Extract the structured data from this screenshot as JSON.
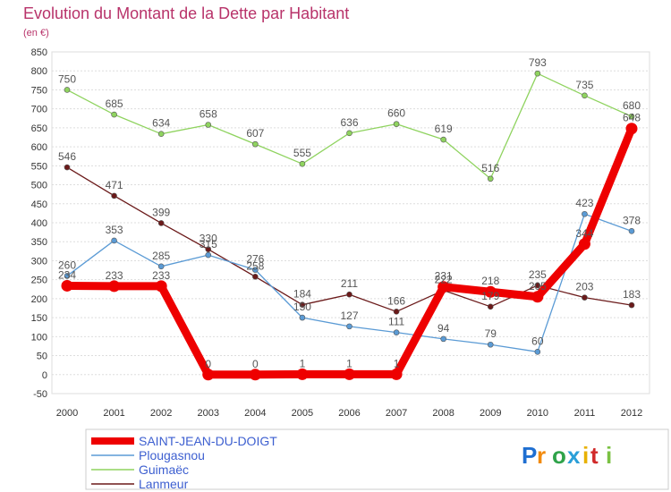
{
  "logo": {
    "text": "Proxiti",
    "letter_colors": [
      "#1f6fd1",
      "#f28a0c",
      "#2fa34a",
      "#2a9fd8",
      "#e8b100",
      "#d12a2a",
      "#7ac143"
    ]
  },
  "chart_data": {
    "type": "line",
    "title": "Evolution du Montant de la Dette par Habitant",
    "subtitle": "(en €)",
    "xlabel": "",
    "ylabel": "",
    "x": [
      "2000",
      "2001",
      "2002",
      "2003",
      "2004",
      "2005",
      "2006",
      "2007",
      "2008",
      "2009",
      "2010",
      "2011",
      "2012"
    ],
    "ylim": [
      -50,
      850
    ],
    "ytick_step": 50,
    "grid": true,
    "legend_position": "bottom-left",
    "series": [
      {
        "name": "SAINT-JEAN-DU-DOIGT",
        "color": "#ee0000",
        "values": [
          234,
          233,
          233,
          0,
          0,
          1,
          1,
          1,
          231,
          218,
          205,
          344,
          648
        ],
        "labels": [
          "234",
          "233",
          "233",
          "0",
          "0",
          "1",
          "1",
          "1",
          "231",
          "218",
          "205",
          "344",
          "648"
        ]
      },
      {
        "name": "Plougasnou",
        "color": "#5b9bd5",
        "values": [
          260,
          353,
          285,
          315,
          276,
          150,
          127,
          111,
          94,
          79,
          60,
          423,
          378
        ],
        "labels": [
          "260",
          "353",
          "285",
          "315",
          "276",
          "150",
          "127",
          "111",
          "94",
          "79",
          "60",
          "423",
          "378"
        ]
      },
      {
        "name": "Guimaëc",
        "color": "#8fd35f",
        "values": [
          750,
          685,
          634,
          658,
          607,
          555,
          636,
          660,
          619,
          516,
          793,
          735,
          680
        ],
        "labels": [
          "750",
          "685",
          "634",
          "658",
          "607",
          "555",
          "636",
          "660",
          "619",
          "516",
          "793",
          "735",
          "680"
        ]
      },
      {
        "name": "Lanmeur",
        "color": "#6b1a1a",
        "values": [
          546,
          471,
          399,
          330,
          258,
          184,
          211,
          166,
          222,
          179,
          235,
          203,
          183
        ],
        "labels": [
          "546",
          "471",
          "399",
          "330",
          "258",
          "184",
          "211",
          "166",
          "222",
          "179",
          "235",
          "203",
          "183"
        ]
      }
    ]
  }
}
